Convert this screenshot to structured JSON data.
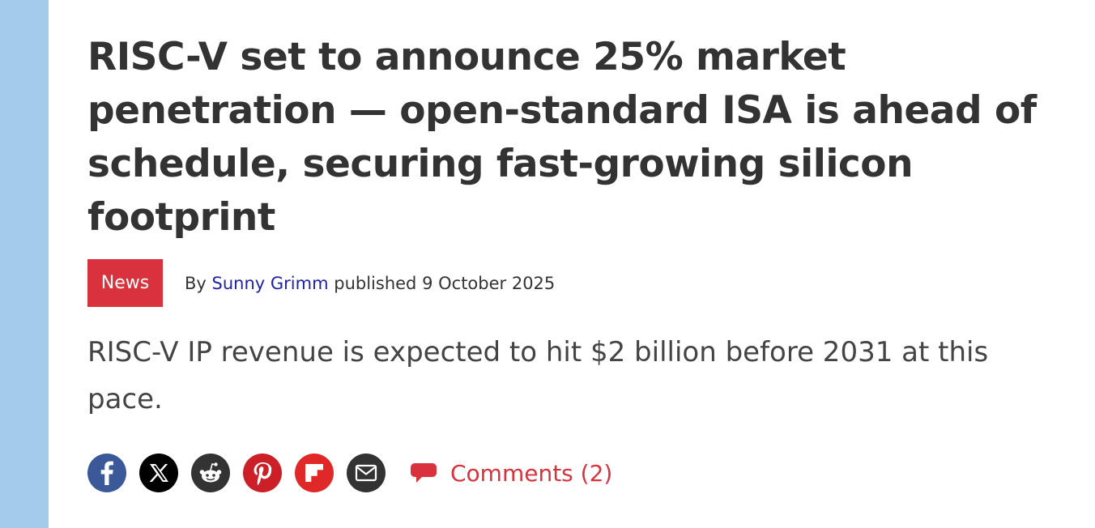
{
  "colors": {
    "stripe": "#a3cbea",
    "tag_bg": "#d9323c",
    "author_link": "#1f22a6",
    "accent_red": "#d9323c",
    "facebook": "#3b5998",
    "x": "#000000",
    "reddit": "#333333",
    "pinterest": "#cb2027",
    "flipboard": "#e12828",
    "email": "#333333"
  },
  "article": {
    "headline": "RISC-V set to announce 25% market penetration — open-standard ISA is ahead of schedule, securing fast-growing silicon footprint",
    "tag": "News",
    "byline": {
      "prefix": "By",
      "author": "Sunny Grimm",
      "published_prefix": "published",
      "date": "9 October 2025"
    },
    "standfirst": "RISC-V IP revenue is expected to hit $2 billion before 2031 at this pace."
  },
  "share": {
    "buttons": [
      {
        "name": "facebook",
        "icon": "facebook-icon"
      },
      {
        "name": "x",
        "icon": "x-icon"
      },
      {
        "name": "reddit",
        "icon": "reddit-icon"
      },
      {
        "name": "pinterest",
        "icon": "pinterest-icon"
      },
      {
        "name": "flipboard",
        "icon": "flipboard-icon"
      },
      {
        "name": "email",
        "icon": "email-icon"
      }
    ],
    "comments_label": "Comments (2)",
    "comments_icon": "speech-bubble-icon"
  }
}
